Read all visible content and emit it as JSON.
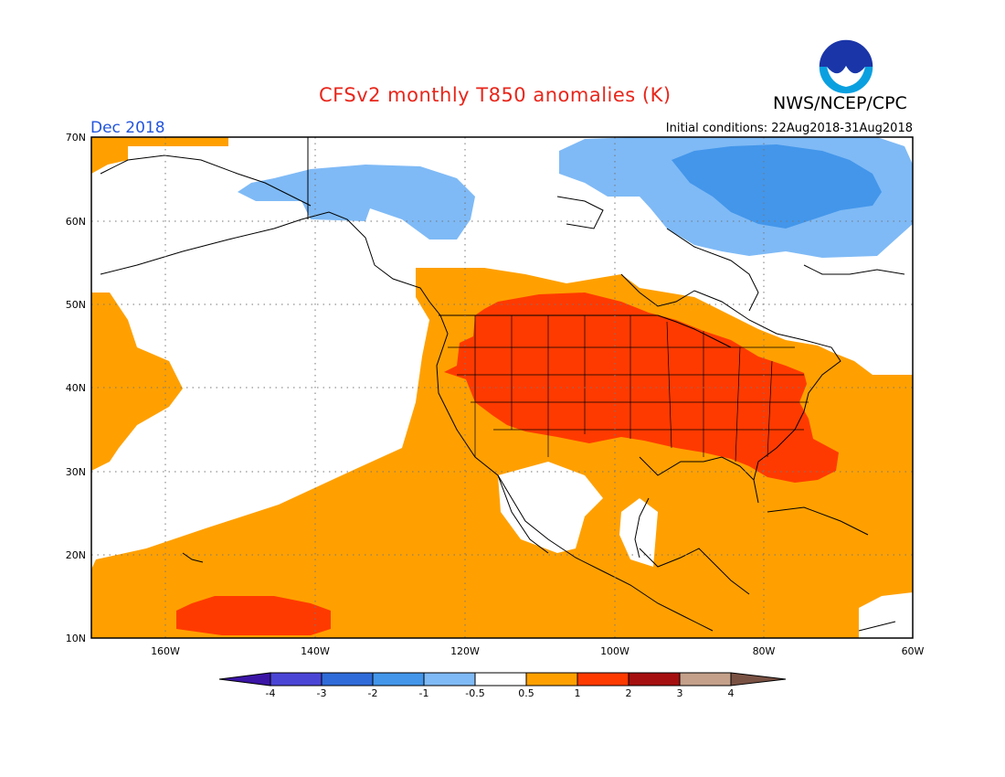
{
  "header": {
    "title": "CFSv2 monthly T850 anomalies (K)",
    "org": "NWS/NCEP/CPC",
    "month": "Dec 2018",
    "initial_conditions": "Initial conditions: 22Aug2018-31Aug2018",
    "logo_text": "NOAA"
  },
  "map": {
    "lat_labels": [
      "70N",
      "60N",
      "50N",
      "40N",
      "30N",
      "20N",
      "10N"
    ],
    "lon_labels": [
      "160W",
      "140W",
      "120W",
      "100W",
      "80W",
      "60W"
    ]
  },
  "colorbar": {
    "labels": [
      "-4",
      "-3",
      "-2",
      "-1",
      "-0.5",
      "0.5",
      "1",
      "2",
      "3",
      "4"
    ],
    "colors": [
      "#3b15a6",
      "#4b45d6",
      "#2f6bd9",
      "#4396ea",
      "#7fbaf6",
      "#ffffff",
      "#ffa000",
      "#ff3a00",
      "#a50f0f",
      "#c4a08a",
      "#7a5244"
    ]
  },
  "anomaly_colors": {
    "minus_2_to_minus_1": "#4396ea",
    "minus_1_to_minus_0_5": "#7fbaf6",
    "plus_0_5_to_1": "#ffa000",
    "plus_1_to_2": "#ff3a00"
  }
}
